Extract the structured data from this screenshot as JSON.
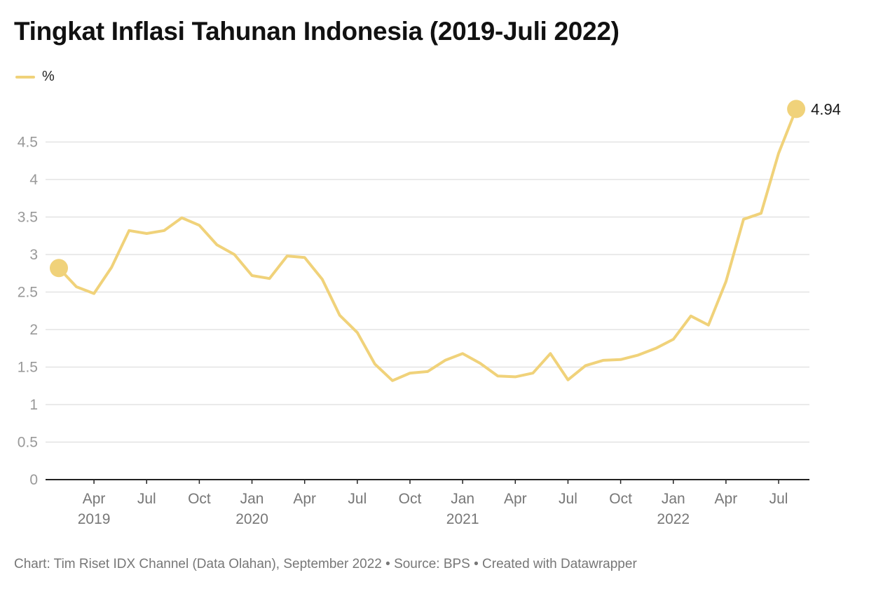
{
  "title": "Tingkat Inflasi Tahunan Indonesia (2019-Juli 2022)",
  "footer": "Chart: Tim Riset IDX Channel (Data Olahan), September 2022 • Source: BPS • Created with Datawrapper",
  "colors": {
    "line": "#F0D27A",
    "grid": "#e3e3e3",
    "tick_text": "#999999",
    "axis": "#222222",
    "label_text": "#1a1a1a"
  },
  "chart_data": {
    "type": "line",
    "title": "Tingkat Inflasi Tahunan Indonesia (2019-Juli 2022)",
    "ylim": [
      0,
      5
    ],
    "yticks": [
      "0",
      "0.5",
      "1",
      "1.5",
      "2",
      "2.5",
      "3",
      "3.5",
      "4",
      "4.5"
    ],
    "xticks": [
      {
        "index": 2,
        "label": "Apr",
        "year": "2019"
      },
      {
        "index": 5,
        "label": "Jul",
        "year": ""
      },
      {
        "index": 8,
        "label": "Oct",
        "year": ""
      },
      {
        "index": 11,
        "label": "Jan",
        "year": "2020"
      },
      {
        "index": 14,
        "label": "Apr",
        "year": ""
      },
      {
        "index": 17,
        "label": "Jul",
        "year": ""
      },
      {
        "index": 20,
        "label": "Oct",
        "year": ""
      },
      {
        "index": 23,
        "label": "Jan",
        "year": "2021"
      },
      {
        "index": 26,
        "label": "Apr",
        "year": ""
      },
      {
        "index": 29,
        "label": "Jul",
        "year": ""
      },
      {
        "index": 32,
        "label": "Oct",
        "year": ""
      },
      {
        "index": 35,
        "label": "Jan",
        "year": "2022"
      },
      {
        "index": 38,
        "label": "Apr",
        "year": ""
      },
      {
        "index": 41,
        "label": "Jul",
        "year": ""
      }
    ],
    "series": [
      {
        "name": "%",
        "values": [
          2.82,
          2.57,
          2.48,
          2.83,
          3.32,
          3.28,
          3.32,
          3.49,
          3.39,
          3.13,
          3.0,
          2.72,
          2.68,
          2.98,
          2.96,
          2.67,
          2.19,
          1.96,
          1.54,
          1.32,
          1.42,
          1.44,
          1.59,
          1.68,
          1.55,
          1.38,
          1.37,
          1.42,
          1.68,
          1.33,
          1.52,
          1.59,
          1.6,
          1.66,
          1.75,
          1.87,
          2.18,
          2.06,
          2.64,
          3.47,
          3.55,
          4.35,
          4.94
        ]
      }
    ],
    "end_label": "4.94"
  }
}
